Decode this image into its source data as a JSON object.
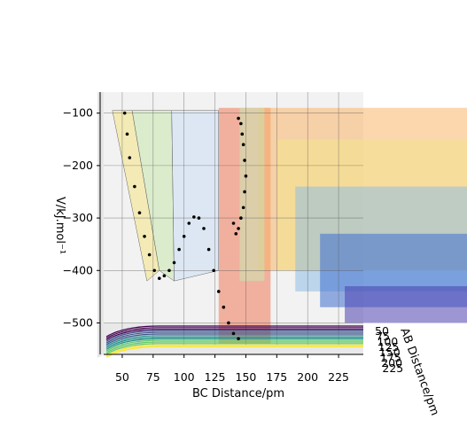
{
  "chart_data": {
    "type": "surface-3d",
    "title": "",
    "xlabel": "BC Distance/pm",
    "ylabel": "AB Distance/pm",
    "zlabel": "V/kJ.mol⁻¹",
    "x_ticks": [
      50,
      75,
      100,
      125,
      150,
      175,
      200,
      225
    ],
    "y_ticks": [
      50,
      75,
      100,
      125,
      150,
      175,
      200,
      225
    ],
    "z_ticks": [
      -100,
      -200,
      -300,
      -400,
      -500
    ],
    "xlim": [
      35,
      245
    ],
    "zlim": [
      -560,
      -60
    ],
    "grid": true,
    "surface_colormap": [
      "#4a3fae",
      "#3f6fd0",
      "#8fbde3",
      "#c9e8b3",
      "#f3e48c",
      "#f9b46a",
      "#f07a5a",
      "#d84a4a"
    ],
    "contour_colormap": [
      "#440154",
      "#3b528b",
      "#21918c",
      "#5ec962",
      "#fde725"
    ],
    "trajectory_color": "#000000",
    "trajectory": {
      "description_free": true,
      "series": [
        {
          "bc": [
            52,
            54,
            56,
            60,
            64,
            68,
            72,
            76,
            80,
            84,
            88,
            92,
            96,
            100,
            104,
            108,
            112,
            116,
            120,
            124,
            128,
            132,
            136,
            140,
            144
          ],
          "v": [
            -100,
            -140,
            -185,
            -240,
            -290,
            -335,
            -370,
            -400,
            -415,
            -410,
            -400,
            -385,
            -360,
            -335,
            -310,
            -298,
            -300,
            -320,
            -360,
            -400,
            -440,
            -470,
            -500,
            -520,
            -530
          ]
        },
        {
          "bc": [
            144,
            146,
            147,
            148,
            149,
            150,
            149,
            148,
            146,
            144,
            142,
            140
          ],
          "v": [
            -110,
            -120,
            -140,
            -160,
            -190,
            -220,
            -250,
            -280,
            -300,
            -320,
            -330,
            -310
          ]
        }
      ]
    }
  }
}
